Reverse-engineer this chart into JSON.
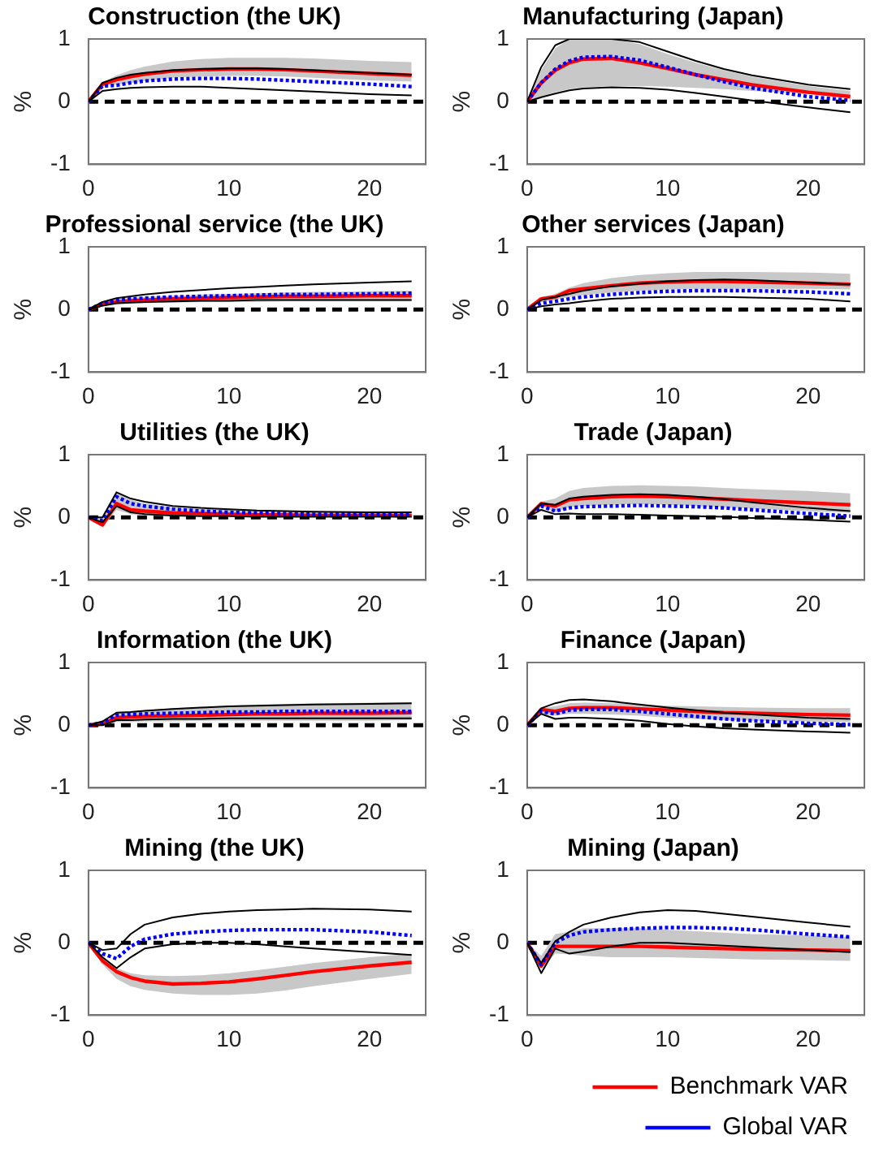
{
  "chart_data": [
    {
      "type": "line",
      "title": "Construction (the UK)",
      "ylabel": "%",
      "x": [
        0,
        1,
        2,
        3,
        4,
        6,
        8,
        10,
        12,
        14,
        16,
        20,
        23
      ],
      "xlim": [
        0,
        24
      ],
      "xticks": [
        0,
        10,
        20
      ],
      "ylim": [
        -1,
        1
      ],
      "yticks": [
        -1,
        0,
        1
      ],
      "legend": false,
      "ref_lines": [
        {
          "axis": "y",
          "value": 0,
          "color": "#000000",
          "line_style": "dashed"
        }
      ],
      "series": [
        {
          "color": "#000000",
          "line_style": "solid",
          "values": [
            0,
            0.3,
            0.38,
            0.43,
            0.46,
            0.5,
            0.52,
            0.53,
            0.53,
            0.52,
            0.5,
            0.46,
            0.43
          ]
        },
        {
          "color": "#000000",
          "line_style": "solid",
          "values": [
            0,
            0.17,
            0.2,
            0.22,
            0.23,
            0.24,
            0.24,
            0.22,
            0.2,
            0.18,
            0.16,
            0.12,
            0.1
          ]
        },
        {
          "color": "#ff0000",
          "line_style": "solid",
          "values": [
            0,
            0.28,
            0.35,
            0.4,
            0.44,
            0.49,
            0.51,
            0.52,
            0.52,
            0.51,
            0.49,
            0.45,
            0.42
          ],
          "lower": [
            0,
            0.25,
            0.27,
            0.3,
            0.33,
            0.38,
            0.4,
            0.41,
            0.41,
            0.4,
            0.38,
            0.34,
            0.32
          ],
          "upper": [
            0,
            0.3,
            0.42,
            0.5,
            0.56,
            0.64,
            0.68,
            0.7,
            0.7,
            0.7,
            0.69,
            0.65,
            0.63
          ]
        },
        {
          "color": "#0000ff",
          "line_style": "dotted",
          "values": [
            0,
            0.25,
            0.26,
            0.3,
            0.33,
            0.36,
            0.37,
            0.37,
            0.36,
            0.34,
            0.32,
            0.28,
            0.24
          ]
        }
      ]
    },
    {
      "type": "line",
      "title": "Manufacturing (Japan)",
      "ylabel": "%",
      "x": [
        0,
        1,
        2,
        3,
        4,
        6,
        8,
        10,
        12,
        14,
        16,
        20,
        23
      ],
      "xlim": [
        0,
        24
      ],
      "xticks": [
        0,
        10,
        20
      ],
      "ylim": [
        -1,
        1
      ],
      "yticks": [
        -1,
        0,
        1
      ],
      "legend": false,
      "ref_lines": [
        {
          "axis": "y",
          "value": 0,
          "color": "#000000",
          "line_style": "dashed"
        }
      ],
      "series": [
        {
          "color": "#000000",
          "line_style": "solid",
          "values": [
            0,
            0.55,
            0.9,
            1,
            1,
            1,
            0.95,
            0.8,
            0.65,
            0.52,
            0.42,
            0.27,
            0.2
          ]
        },
        {
          "color": "#000000",
          "line_style": "solid",
          "values": [
            0,
            0.07,
            0.13,
            0.18,
            0.21,
            0.23,
            0.22,
            0.19,
            0.14,
            0.08,
            0.02,
            -0.09,
            -0.17
          ]
        },
        {
          "color": "#ff0000",
          "line_style": "solid",
          "values": [
            0,
            0.3,
            0.5,
            0.62,
            0.68,
            0.69,
            0.62,
            0.53,
            0.43,
            0.35,
            0.27,
            0.15,
            0.08
          ],
          "lower": [
            0,
            0.08,
            0.15,
            0.2,
            0.23,
            0.25,
            0.25,
            0.24,
            0.22,
            0.2,
            0.17,
            0.12,
            0.1
          ],
          "upper": [
            0,
            0.5,
            0.85,
            1,
            1,
            1,
            0.92,
            0.76,
            0.62,
            0.5,
            0.4,
            0.25,
            0.17
          ]
        },
        {
          "color": "#0000ff",
          "line_style": "dotted",
          "values": [
            0,
            0.3,
            0.52,
            0.65,
            0.71,
            0.72,
            0.66,
            0.55,
            0.43,
            0.32,
            0.22,
            0.08,
            0.02
          ]
        }
      ]
    },
    {
      "type": "line",
      "title": "Professional service (the UK)",
      "ylabel": "%",
      "x": [
        0,
        1,
        2,
        3,
        4,
        6,
        8,
        10,
        12,
        14,
        16,
        20,
        23
      ],
      "xlim": [
        0,
        24
      ],
      "xticks": [
        0,
        10,
        20
      ],
      "ylim": [
        -1,
        1
      ],
      "yticks": [
        -1,
        0,
        1
      ],
      "legend": false,
      "ref_lines": [
        {
          "axis": "y",
          "value": 0,
          "color": "#000000",
          "line_style": "dashed"
        }
      ],
      "series": [
        {
          "color": "#000000",
          "line_style": "solid",
          "values": [
            0,
            0.12,
            0.18,
            0.21,
            0.24,
            0.28,
            0.31,
            0.34,
            0.36,
            0.38,
            0.4,
            0.43,
            0.45
          ]
        },
        {
          "color": "#000000",
          "line_style": "solid",
          "values": [
            0,
            0.06,
            0.1,
            0.11,
            0.12,
            0.13,
            0.14,
            0.14,
            0.15,
            0.15,
            0.15,
            0.15,
            0.15
          ]
        },
        {
          "color": "#ff0000",
          "line_style": "solid",
          "values": [
            0,
            0.08,
            0.12,
            0.14,
            0.15,
            0.17,
            0.18,
            0.19,
            0.2,
            0.21,
            0.21,
            0.22,
            0.22
          ],
          "lower": [
            0,
            0.05,
            0.08,
            0.1,
            0.1,
            0.11,
            0.12,
            0.12,
            0.12,
            0.13,
            0.13,
            0.13,
            0.13
          ],
          "upper": [
            0,
            0.12,
            0.16,
            0.19,
            0.2,
            0.22,
            0.24,
            0.25,
            0.26,
            0.27,
            0.28,
            0.29,
            0.3
          ]
        },
        {
          "color": "#0000ff",
          "line_style": "dotted",
          "values": [
            0,
            0.1,
            0.15,
            0.17,
            0.18,
            0.2,
            0.21,
            0.22,
            0.23,
            0.24,
            0.24,
            0.25,
            0.26
          ]
        }
      ]
    },
    {
      "type": "line",
      "title": "Other services (Japan)",
      "ylabel": "%",
      "x": [
        0,
        1,
        2,
        3,
        4,
        6,
        8,
        10,
        12,
        14,
        16,
        20,
        23
      ],
      "xlim": [
        0,
        24
      ],
      "xticks": [
        0,
        10,
        20
      ],
      "ylim": [
        -1,
        1
      ],
      "yticks": [
        -1,
        0,
        1
      ],
      "legend": false,
      "ref_lines": [
        {
          "axis": "y",
          "value": 0,
          "color": "#000000",
          "line_style": "dashed"
        }
      ],
      "series": [
        {
          "color": "#000000",
          "line_style": "solid",
          "values": [
            0,
            0.15,
            0.2,
            0.25,
            0.3,
            0.37,
            0.41,
            0.45,
            0.47,
            0.48,
            0.47,
            0.43,
            0.4
          ]
        },
        {
          "color": "#000000",
          "line_style": "solid",
          "values": [
            0,
            0.05,
            0.08,
            0.1,
            0.13,
            0.17,
            0.19,
            0.2,
            0.2,
            0.2,
            0.19,
            0.17,
            0.13
          ]
        },
        {
          "color": "#ff0000",
          "line_style": "solid",
          "values": [
            0,
            0.17,
            0.2,
            0.3,
            0.33,
            0.38,
            0.42,
            0.44,
            0.45,
            0.45,
            0.44,
            0.42,
            0.4
          ],
          "lower": [
            0,
            0.12,
            0.15,
            0.2,
            0.23,
            0.27,
            0.3,
            0.32,
            0.33,
            0.33,
            0.33,
            0.33,
            0.32
          ],
          "upper": [
            0,
            0.2,
            0.25,
            0.35,
            0.42,
            0.5,
            0.55,
            0.58,
            0.6,
            0.6,
            0.6,
            0.59,
            0.57
          ]
        },
        {
          "color": "#0000ff",
          "line_style": "dotted",
          "values": [
            0,
            0.1,
            0.13,
            0.17,
            0.2,
            0.24,
            0.27,
            0.29,
            0.3,
            0.3,
            0.3,
            0.28,
            0.25
          ]
        }
      ]
    },
    {
      "type": "line",
      "title": "Utilities (the UK)",
      "ylabel": "%",
      "x": [
        0,
        1,
        2,
        3,
        4,
        6,
        8,
        10,
        12,
        14,
        16,
        20,
        23
      ],
      "xlim": [
        0,
        24
      ],
      "xticks": [
        0,
        10,
        20
      ],
      "ylim": [
        -1,
        1
      ],
      "yticks": [
        -1,
        0,
        1
      ],
      "legend": false,
      "ref_lines": [
        {
          "axis": "y",
          "value": 0,
          "color": "#000000",
          "line_style": "dashed"
        }
      ],
      "series": [
        {
          "color": "#000000",
          "line_style": "solid",
          "values": [
            0,
            0,
            0.4,
            0.3,
            0.25,
            0.18,
            0.15,
            0.13,
            0.11,
            0.1,
            0.09,
            0.08,
            0.08
          ]
        },
        {
          "color": "#000000",
          "line_style": "solid",
          "values": [
            0,
            -0.08,
            0.18,
            0.08,
            0.05,
            0.03,
            0.02,
            0.02,
            0.01,
            0.01,
            0.01,
            0.01,
            0.01
          ]
        },
        {
          "color": "#ff0000",
          "line_style": "solid",
          "values": [
            0,
            -0.12,
            0.22,
            0.12,
            0.1,
            0.07,
            0.06,
            0.05,
            0.04,
            0.04,
            0.03,
            0.03,
            0.03
          ],
          "lower": [
            0,
            -0.15,
            0.12,
            0.05,
            0.03,
            0.02,
            0.02,
            0.01,
            0.01,
            0.01,
            0.01,
            0.01,
            0.01
          ],
          "upper": [
            0,
            -0.02,
            0.4,
            0.28,
            0.22,
            0.16,
            0.14,
            0.12,
            0.1,
            0.1,
            0.09,
            0.08,
            0.08
          ]
        },
        {
          "color": "#0000ff",
          "line_style": "dotted",
          "values": [
            0,
            -0.05,
            0.33,
            0.22,
            0.18,
            0.13,
            0.1,
            0.08,
            0.07,
            0.06,
            0.05,
            0.05,
            0.05
          ]
        }
      ]
    },
    {
      "type": "line",
      "title": "Trade (Japan)",
      "ylabel": "%",
      "x": [
        0,
        1,
        2,
        3,
        4,
        6,
        8,
        10,
        12,
        14,
        16,
        20,
        23
      ],
      "xlim": [
        0,
        24
      ],
      "xticks": [
        0,
        10,
        20
      ],
      "ylim": [
        -1,
        1
      ],
      "yticks": [
        -1,
        0,
        1
      ],
      "legend": false,
      "ref_lines": [
        {
          "axis": "y",
          "value": 0,
          "color": "#000000",
          "line_style": "dashed"
        }
      ],
      "series": [
        {
          "color": "#000000",
          "line_style": "solid",
          "values": [
            0,
            0.22,
            0.2,
            0.3,
            0.33,
            0.36,
            0.37,
            0.36,
            0.33,
            0.29,
            0.24,
            0.15,
            0.1
          ]
        },
        {
          "color": "#000000",
          "line_style": "solid",
          "values": [
            0,
            0.12,
            0.05,
            0.06,
            0.05,
            0.05,
            0.04,
            0.03,
            0.02,
            0.01,
            -0.01,
            -0.04,
            -0.07
          ]
        },
        {
          "color": "#ff0000",
          "line_style": "solid",
          "values": [
            0,
            0.22,
            0.18,
            0.28,
            0.3,
            0.33,
            0.34,
            0.33,
            0.31,
            0.29,
            0.27,
            0.23,
            0.2
          ],
          "lower": [
            0,
            0.18,
            0.08,
            0.16,
            0.18,
            0.2,
            0.21,
            0.2,
            0.18,
            0.16,
            0.14,
            0.1,
            0.07
          ],
          "upper": [
            0,
            0.25,
            0.3,
            0.42,
            0.47,
            0.5,
            0.51,
            0.5,
            0.49,
            0.47,
            0.45,
            0.42,
            0.38
          ]
        },
        {
          "color": "#0000ff",
          "line_style": "dotted",
          "values": [
            0,
            0.18,
            0.1,
            0.15,
            0.17,
            0.18,
            0.19,
            0.18,
            0.17,
            0.15,
            0.12,
            0.06,
            0.02
          ]
        }
      ]
    },
    {
      "type": "line",
      "title": "Information (the UK)",
      "ylabel": "%",
      "x": [
        0,
        1,
        2,
        3,
        4,
        6,
        8,
        10,
        12,
        14,
        16,
        20,
        23
      ],
      "xlim": [
        0,
        24
      ],
      "xticks": [
        0,
        10,
        20
      ],
      "ylim": [
        -1,
        1
      ],
      "yticks": [
        -1,
        0,
        1
      ],
      "legend": false,
      "ref_lines": [
        {
          "axis": "y",
          "value": 0,
          "color": "#000000",
          "line_style": "dashed"
        }
      ],
      "series": [
        {
          "color": "#000000",
          "line_style": "solid",
          "values": [
            0,
            0.06,
            0.2,
            0.21,
            0.23,
            0.26,
            0.28,
            0.3,
            0.31,
            0.32,
            0.33,
            0.34,
            0.35
          ]
        },
        {
          "color": "#000000",
          "line_style": "solid",
          "values": [
            0,
            0,
            0.08,
            0.08,
            0.09,
            0.1,
            0.1,
            0.11,
            0.11,
            0.11,
            0.11,
            0.11,
            0.11
          ]
        },
        {
          "color": "#ff0000",
          "line_style": "solid",
          "values": [
            0,
            0.02,
            0.12,
            0.13,
            0.14,
            0.15,
            0.16,
            0.17,
            0.18,
            0.18,
            0.19,
            0.19,
            0.2
          ],
          "lower": [
            0,
            0,
            0.05,
            0.05,
            0.06,
            0.06,
            0.07,
            0.07,
            0.07,
            0.07,
            0.07,
            0.07,
            0.08
          ],
          "upper": [
            0,
            0.05,
            0.2,
            0.22,
            0.24,
            0.27,
            0.29,
            0.31,
            0.33,
            0.34,
            0.35,
            0.36,
            0.37
          ]
        },
        {
          "color": "#0000ff",
          "line_style": "dotted",
          "values": [
            0,
            0.04,
            0.16,
            0.17,
            0.18,
            0.19,
            0.2,
            0.21,
            0.21,
            0.22,
            0.22,
            0.22,
            0.22
          ]
        }
      ]
    },
    {
      "type": "line",
      "title": "Finance (Japan)",
      "ylabel": "%",
      "x": [
        0,
        1,
        2,
        3,
        4,
        6,
        8,
        10,
        12,
        14,
        16,
        20,
        23
      ],
      "xlim": [
        0,
        24
      ],
      "xticks": [
        0,
        10,
        20
      ],
      "ylim": [
        -1,
        1
      ],
      "yticks": [
        -1,
        0,
        1
      ],
      "legend": false,
      "ref_lines": [
        {
          "axis": "y",
          "value": 0,
          "color": "#000000",
          "line_style": "dashed"
        }
      ],
      "series": [
        {
          "color": "#000000",
          "line_style": "solid",
          "values": [
            0,
            0.27,
            0.35,
            0.4,
            0.41,
            0.38,
            0.33,
            0.28,
            0.24,
            0.2,
            0.17,
            0.12,
            0.1
          ]
        },
        {
          "color": "#000000",
          "line_style": "solid",
          "values": [
            0,
            0.18,
            0.1,
            0.12,
            0.12,
            0.1,
            0.07,
            0.02,
            -0.02,
            -0.05,
            -0.07,
            -0.1,
            -0.12
          ]
        },
        {
          "color": "#ff0000",
          "line_style": "solid",
          "values": [
            0,
            0.25,
            0.22,
            0.27,
            0.28,
            0.28,
            0.26,
            0.24,
            0.22,
            0.2,
            0.19,
            0.17,
            0.16
          ],
          "lower": [
            0,
            0.18,
            0.15,
            0.18,
            0.18,
            0.17,
            0.15,
            0.12,
            0.1,
            0.08,
            0.07,
            0.06,
            0.05
          ],
          "upper": [
            0,
            0.27,
            0.3,
            0.35,
            0.36,
            0.35,
            0.33,
            0.31,
            0.3,
            0.29,
            0.28,
            0.27,
            0.27
          ]
        },
        {
          "color": "#0000ff",
          "line_style": "dotted",
          "values": [
            0,
            0.22,
            0.18,
            0.24,
            0.25,
            0.25,
            0.22,
            0.18,
            0.14,
            0.1,
            0.07,
            0.03,
            0.01
          ]
        }
      ]
    },
    {
      "type": "line",
      "title": "Mining (the UK)",
      "ylabel": "%",
      "x": [
        0,
        1,
        2,
        3,
        4,
        6,
        8,
        10,
        12,
        14,
        16,
        20,
        23
      ],
      "xlim": [
        0,
        24
      ],
      "xticks": [
        0,
        10,
        20
      ],
      "ylim": [
        -1,
        1
      ],
      "yticks": [
        -1,
        0,
        1
      ],
      "legend": false,
      "ref_lines": [
        {
          "axis": "y",
          "value": 0,
          "color": "#000000",
          "line_style": "dashed"
        }
      ],
      "series": [
        {
          "color": "#000000",
          "line_style": "solid",
          "values": [
            0,
            -0.1,
            -0.08,
            0.12,
            0.25,
            0.35,
            0.4,
            0.43,
            0.45,
            0.46,
            0.47,
            0.46,
            0.43
          ]
        },
        {
          "color": "#000000",
          "line_style": "solid",
          "values": [
            0,
            -0.2,
            -0.35,
            -0.2,
            -0.08,
            -0.02,
            0,
            0,
            -0.02,
            -0.05,
            -0.08,
            -0.13,
            -0.17
          ]
        },
        {
          "color": "#ff0000",
          "line_style": "solid",
          "values": [
            0,
            -0.25,
            -0.4,
            -0.48,
            -0.53,
            -0.57,
            -0.56,
            -0.54,
            -0.5,
            -0.45,
            -0.4,
            -0.32,
            -0.27
          ],
          "lower": [
            0,
            -0.3,
            -0.5,
            -0.6,
            -0.65,
            -0.7,
            -0.72,
            -0.72,
            -0.7,
            -0.66,
            -0.6,
            -0.5,
            -0.43
          ],
          "upper": [
            0,
            -0.2,
            -0.35,
            -0.42,
            -0.45,
            -0.46,
            -0.45,
            -0.42,
            -0.38,
            -0.33,
            -0.28,
            -0.2,
            -0.15
          ]
        },
        {
          "color": "#0000ff",
          "line_style": "dotted",
          "values": [
            0,
            -0.15,
            -0.22,
            -0.05,
            0.05,
            0.12,
            0.15,
            0.17,
            0.18,
            0.18,
            0.18,
            0.15,
            0.1
          ]
        }
      ]
    },
    {
      "type": "line",
      "title": "Mining (Japan)",
      "ylabel": "%",
      "x": [
        0,
        1,
        2,
        3,
        4,
        6,
        8,
        10,
        12,
        14,
        16,
        20,
        23
      ],
      "xlim": [
        0,
        24
      ],
      "xticks": [
        0,
        10,
        20
      ],
      "ylim": [
        -1,
        1
      ],
      "yticks": [
        -1,
        0,
        1
      ],
      "legend": "bottom right",
      "ref_lines": [
        {
          "axis": "y",
          "value": 0,
          "color": "#000000",
          "line_style": "dashed"
        }
      ],
      "series": [
        {
          "color": "#000000",
          "line_style": "solid",
          "values": [
            0,
            -0.28,
            0.02,
            0.15,
            0.25,
            0.35,
            0.42,
            0.45,
            0.44,
            0.4,
            0.36,
            0.28,
            0.22
          ]
        },
        {
          "color": "#000000",
          "line_style": "solid",
          "values": [
            0,
            -0.42,
            -0.08,
            -0.15,
            -0.12,
            -0.05,
            0,
            0,
            -0.02,
            -0.04,
            -0.06,
            -0.1,
            -0.13
          ]
        },
        {
          "name": "Benchmark VAR",
          "color": "#ff0000",
          "line_style": "solid",
          "values": [
            0,
            -0.32,
            -0.05,
            -0.05,
            -0.05,
            -0.05,
            -0.05,
            -0.06,
            -0.07,
            -0.08,
            -0.09,
            -0.1,
            -0.11
          ],
          "lower": [
            0,
            -0.37,
            -0.15,
            -0.16,
            -0.18,
            -0.2,
            -0.2,
            -0.2,
            -0.21,
            -0.22,
            -0.23,
            -0.24,
            -0.25
          ],
          "upper": [
            0,
            -0.18,
            0.12,
            0.15,
            0.2,
            0.2,
            0.2,
            0.18,
            0.16,
            0.14,
            0.12,
            0.1,
            0.08
          ]
        },
        {
          "name": "Global VAR",
          "color": "#0000ff",
          "line_style": "dotted",
          "values": [
            0,
            -0.3,
            0,
            0.1,
            0.15,
            0.18,
            0.2,
            0.21,
            0.21,
            0.2,
            0.18,
            0.12,
            0.08
          ]
        }
      ]
    }
  ]
}
